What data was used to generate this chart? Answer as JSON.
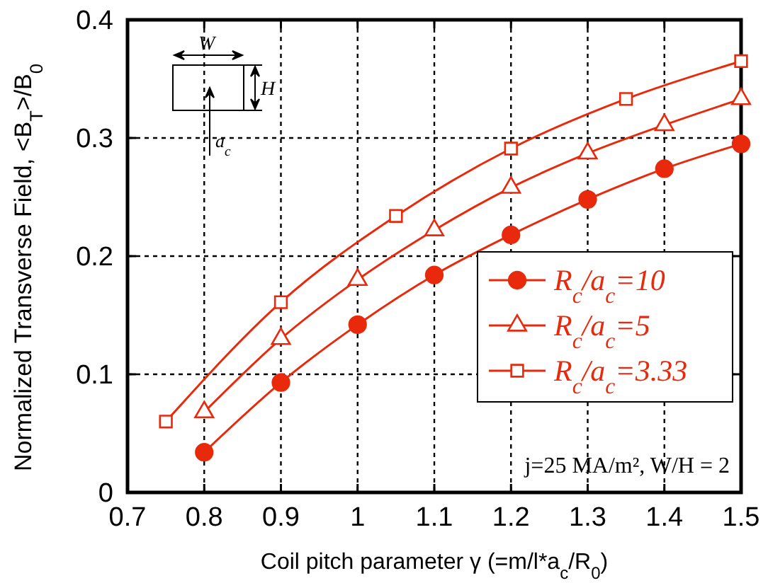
{
  "chart_data": {
    "type": "line",
    "xlabel": "Coil pitch parameter γ (=m/l*a$_{c}$/R$_{0}$)",
    "ylabel": "Normalized Transverse Field, <B$_{T}$>/B$_{0}$",
    "xlim": [
      0.7,
      1.5
    ],
    "xticks": [
      0.7,
      0.8,
      0.9,
      1,
      1.1,
      1.2,
      1.3,
      1.4,
      1.5
    ],
    "ylim": [
      0,
      0.4
    ],
    "yticks": [
      0,
      0.1,
      0.2,
      0.3,
      0.4
    ],
    "grid": true,
    "legend": "bottom right",
    "line_style": "solid",
    "annotations": [
      "W",
      "H",
      "a$_{c}$",
      "j=25 MA/m², W/H = 2"
    ],
    "series": [
      {
        "name": "R$_{c}$/a$_{c}$=10",
        "color": "#e8290b",
        "marker": "circle",
        "x": [
          0.8,
          0.9,
          1.0,
          1.1,
          1.2,
          1.3,
          1.4,
          1.5
        ],
        "values": [
          0.034,
          0.093,
          0.142,
          0.184,
          0.218,
          0.248,
          0.274,
          0.295
        ]
      },
      {
        "name": "R$_{c}$/a$_{c}$=5",
        "color": "#e8290b",
        "marker": "triangle",
        "x": [
          0.8,
          0.9,
          1.0,
          1.1,
          1.2,
          1.3,
          1.4,
          1.5
        ],
        "values": [
          0.068,
          0.13,
          0.18,
          0.222,
          0.258,
          0.287,
          0.311,
          0.333
        ]
      },
      {
        "name": "R$_{c}$/a$_{c}$=3.33",
        "color": "#e8290b",
        "marker": "square",
        "x": [
          0.75,
          0.9,
          1.05,
          1.2,
          1.35,
          1.5
        ],
        "values": [
          0.06,
          0.161,
          0.234,
          0.291,
          0.333,
          0.365
        ]
      }
    ]
  }
}
